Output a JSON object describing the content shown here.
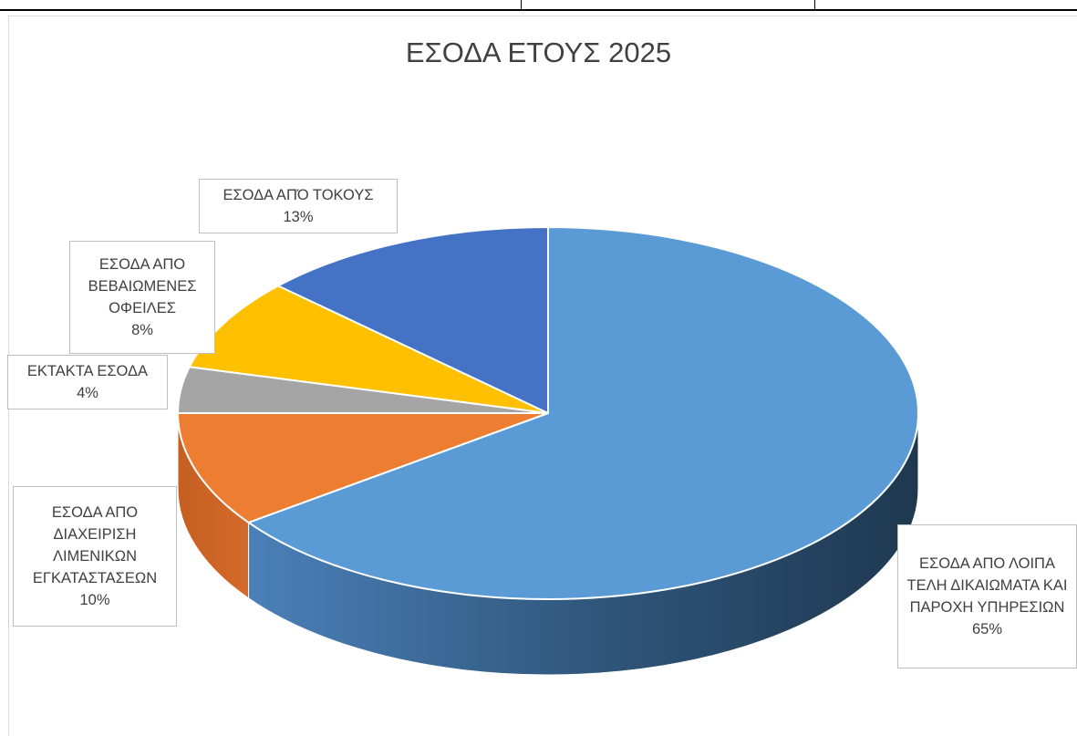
{
  "chart_data": {
    "type": "pie",
    "title": "ΕΣΟΔΑ ΕΤΟΥΣ 2025",
    "style": "3d-exploded",
    "slices": [
      {
        "label": "ΕΣΟΔΑ ΑΠΟ ΛΟΙΠΑ ΤΕΛΗ ΔΙΚΑΙΩΜΑΤΑ ΚΑΙ ΠΑΡΟΧΗ ΥΠΗΡΕΣΙΩΝ",
        "value": 65,
        "value_label": "65%",
        "color": "#5b9bd5"
      },
      {
        "label": "ΕΣΟΔΑ ΑΠΟ ΔΙΑΧΕΙΡΙΣΗ ΛΙΜΕΝΙΚΩΝ ΕΓΚΑΤΑΣΤΑΣΕΩΝ",
        "value": 10,
        "value_label": "10%",
        "color": "#ed7d31"
      },
      {
        "label": "ΕΚΤΑΚΤΑ ΕΣΟΔΑ",
        "value": 4,
        "value_label": "4%",
        "color": "#a5a5a5"
      },
      {
        "label": "ΕΣΟΔΑ ΑΠΟ ΒΕΒΑΙΩΜΕΝΕΣ ΟΦΕΙΛΕΣ",
        "value": 8,
        "value_label": "8%",
        "color": "#ffc000"
      },
      {
        "label": "ΕΣΟΔΑ ΑΠΌ ΤΟΚΟΥΣ",
        "value": 13,
        "value_label": "13%",
        "color": "#4472c4"
      }
    ]
  }
}
